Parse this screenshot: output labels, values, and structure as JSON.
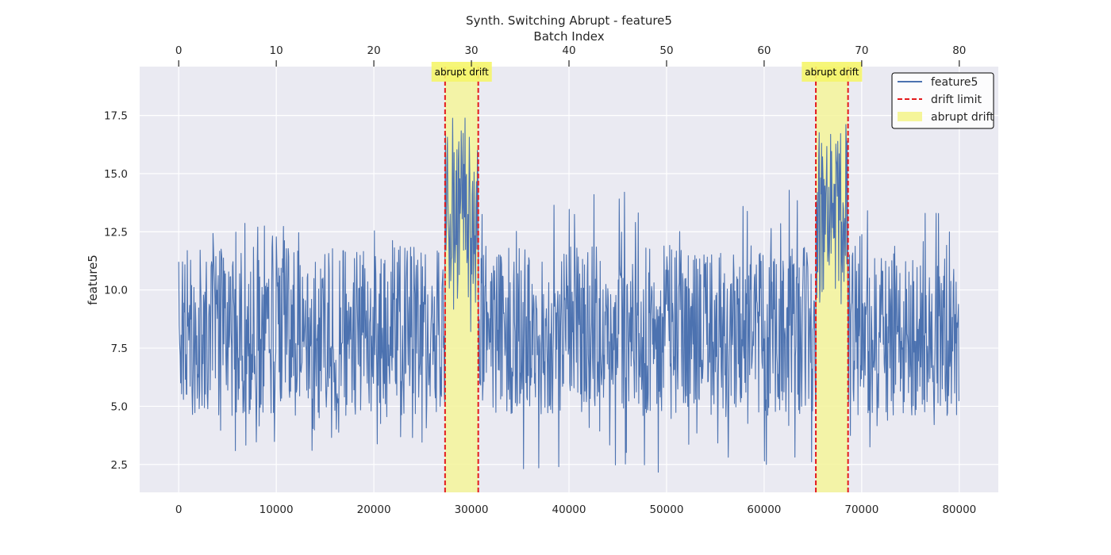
{
  "chart_data": {
    "type": "line",
    "title": "Synth. Switching Abrupt - feature5",
    "top_xlabel": "Batch Index",
    "ylabel": "feature5",
    "xlim": [
      -4000,
      84000
    ],
    "ylim": [
      1.3,
      19.6
    ],
    "x_ticks": [
      0,
      10000,
      20000,
      30000,
      40000,
      50000,
      60000,
      70000,
      80000
    ],
    "x_tick_labels": [
      "0",
      "10000",
      "20000",
      "30000",
      "40000",
      "50000",
      "60000",
      "70000",
      "80000"
    ],
    "top_ticks": [
      0,
      10,
      20,
      30,
      40,
      50,
      60,
      70,
      80
    ],
    "top_tick_labels": [
      "0",
      "10",
      "20",
      "30",
      "40",
      "50",
      "60",
      "70",
      "80"
    ],
    "batch_size": 1000,
    "y_ticks": [
      2.5,
      5.0,
      7.5,
      10.0,
      12.5,
      15.0,
      17.5
    ],
    "y_tick_labels": [
      "2.5",
      "5.0",
      "7.5",
      "10.0",
      "12.5",
      "15.0",
      "17.5"
    ],
    "grid": true,
    "series": [
      {
        "name": "feature5",
        "color": "#4c72b0",
        "x_range": [
          0,
          80000
        ],
        "segments": [
          {
            "x_start": 0,
            "x_end": 27300,
            "low": 3.0,
            "high": 13.0,
            "band_low": 4.6,
            "band_high": 11.9
          },
          {
            "x_start": 27300,
            "x_end": 30700,
            "low": 7.5,
            "high": 17.8,
            "band_low": 9.3,
            "band_high": 16.9
          },
          {
            "x_start": 30700,
            "x_end": 65300,
            "low": 2.1,
            "high": 14.4,
            "band_low": 4.6,
            "band_high": 11.9
          },
          {
            "x_start": 65300,
            "x_end": 68600,
            "low": 7.7,
            "high": 18.8,
            "band_low": 9.4,
            "band_high": 17.0
          },
          {
            "x_start": 68600,
            "x_end": 80000,
            "low": 3.2,
            "high": 14.0,
            "band_low": 4.6,
            "band_high": 11.9
          }
        ]
      }
    ],
    "drift_regions": [
      {
        "label": "abrupt drift",
        "x_start": 27300,
        "x_end": 30700
      },
      {
        "label": "abrupt drift",
        "x_start": 65300,
        "x_end": 68600
      }
    ],
    "drift_limit_color": "#e31a1c",
    "drift_fill_color": "#f5f59a",
    "legend": {
      "placement": "top-right",
      "entries": [
        {
          "label": "feature5",
          "style": "line",
          "color": "#4c72b0"
        },
        {
          "label": "drift limit",
          "style": "dashed",
          "color": "#e31a1c"
        },
        {
          "label": "abrupt drift",
          "style": "patch",
          "color": "#f5f59a"
        }
      ]
    }
  }
}
